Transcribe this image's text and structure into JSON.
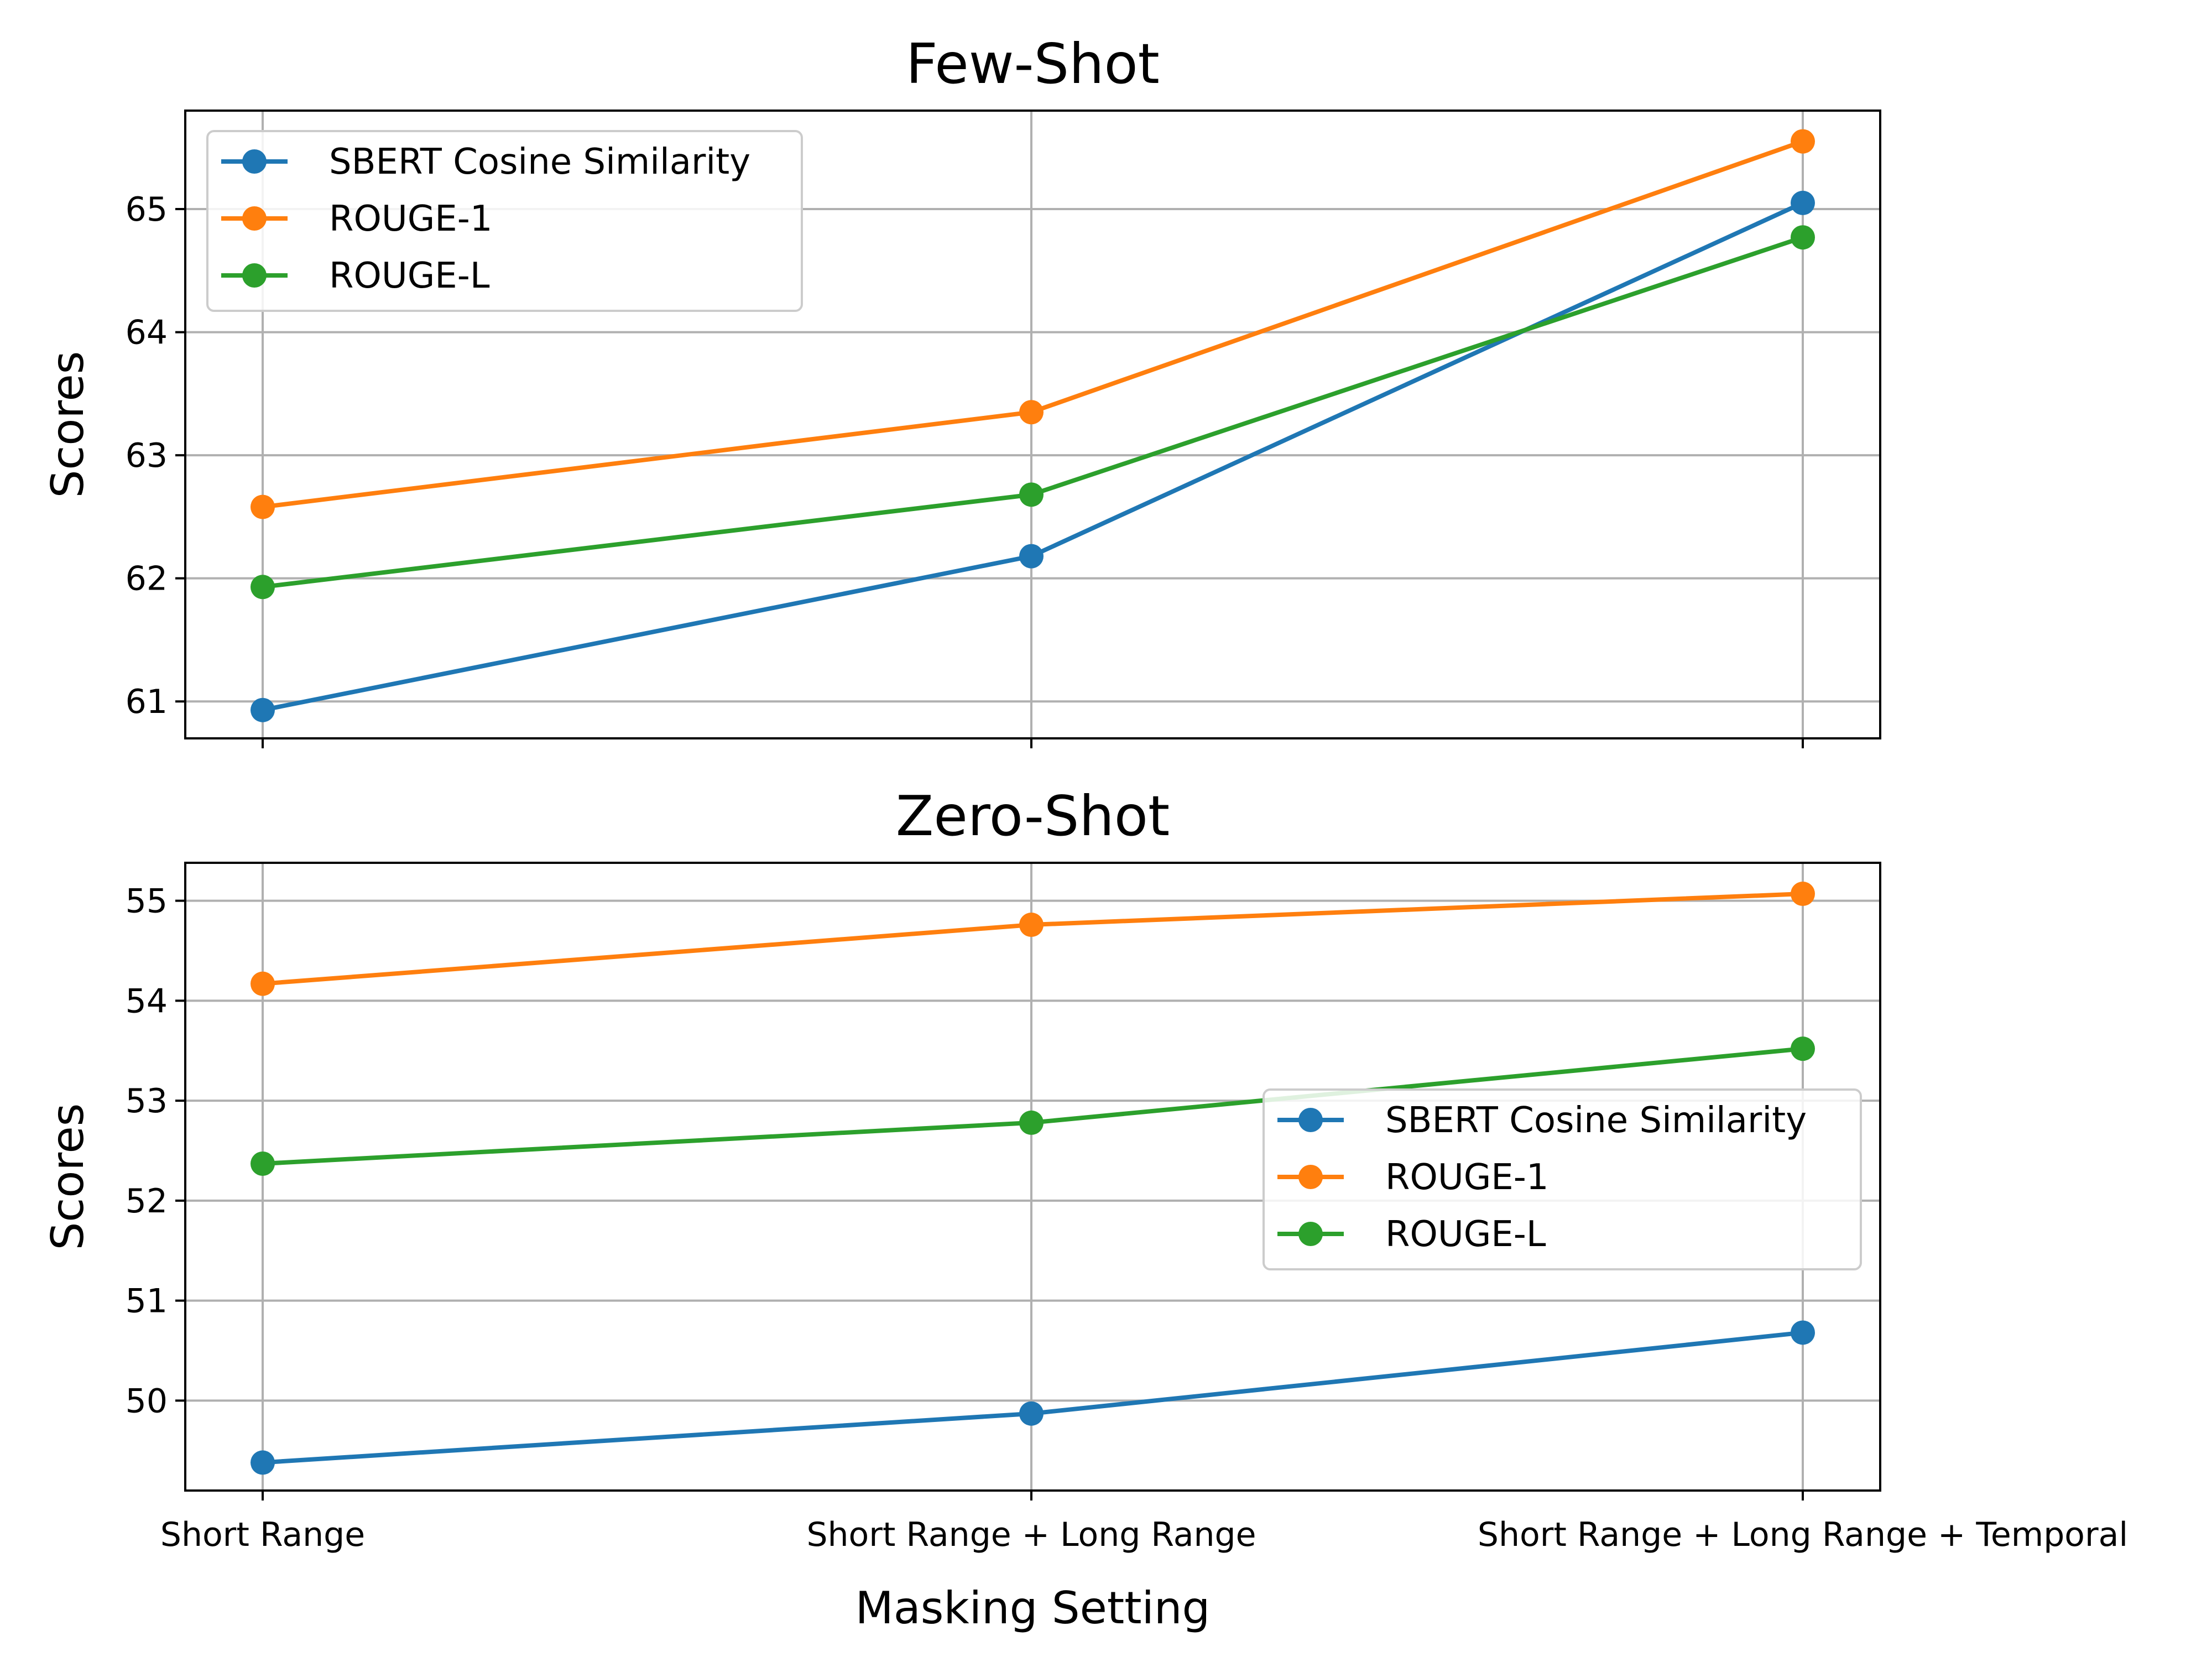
{
  "chart_data": [
    {
      "type": "line",
      "title": "Few-Shot",
      "xlabel": "",
      "ylabel": "Scores",
      "categories": [
        "Short Range",
        "Short Range + Long Range",
        "Short Range + Long Range + Temporal"
      ],
      "show_x_tick_labels": false,
      "ylim": [
        60.7,
        65.8
      ],
      "yticks": [
        61,
        62,
        63,
        64,
        65
      ],
      "grid": true,
      "legend_position": "upper-left",
      "series": [
        {
          "name": "SBERT Cosine Similarity",
          "color": "#1f77b4",
          "values": [
            60.93,
            62.18,
            65.05
          ]
        },
        {
          "name": "ROUGE-1",
          "color": "#ff7f0e",
          "values": [
            62.58,
            63.35,
            65.55
          ]
        },
        {
          "name": "ROUGE-L",
          "color": "#2ca02c",
          "values": [
            61.93,
            62.68,
            64.77
          ]
        }
      ]
    },
    {
      "type": "line",
      "title": "Zero-Shot",
      "xlabel": "Masking Setting",
      "ylabel": "Scores",
      "categories": [
        "Short Range",
        "Short Range + Long Range",
        "Short Range + Long Range + Temporal"
      ],
      "show_x_tick_labels": true,
      "ylim": [
        49.1,
        55.38
      ],
      "yticks": [
        50,
        51,
        52,
        53,
        54,
        55
      ],
      "grid": true,
      "legend_position": "center-right",
      "series": [
        {
          "name": "SBERT Cosine Similarity",
          "color": "#1f77b4",
          "values": [
            49.38,
            49.87,
            50.68
          ]
        },
        {
          "name": "ROUGE-1",
          "color": "#ff7f0e",
          "values": [
            54.17,
            54.76,
            55.07
          ]
        },
        {
          "name": "ROUGE-L",
          "color": "#2ca02c",
          "values": [
            52.37,
            52.78,
            53.52
          ]
        }
      ]
    }
  ]
}
